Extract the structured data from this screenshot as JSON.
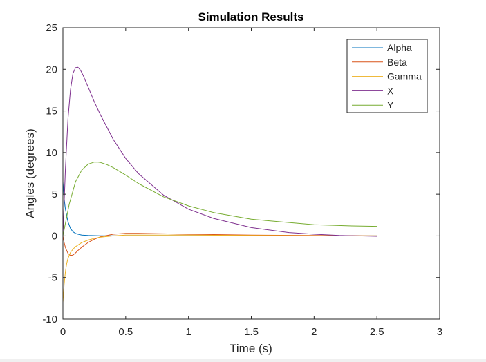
{
  "chart_data": {
    "type": "line",
    "title": "Simulation Results",
    "xlabel": "Time (s)",
    "ylabel": "Angles (degrees)",
    "xlim": [
      0,
      3
    ],
    "ylim": [
      -10,
      25
    ],
    "xticks": [
      0,
      0.5,
      1,
      1.5,
      2,
      2.5,
      3
    ],
    "xtick_labels": [
      "0",
      "0.5",
      "1",
      "1.5",
      "2",
      "2.5",
      "3"
    ],
    "yticks": [
      -10,
      -5,
      0,
      5,
      10,
      15,
      20,
      25
    ],
    "ytick_labels": [
      "-10",
      "-5",
      "0",
      "5",
      "10",
      "15",
      "20",
      "25"
    ],
    "grid": false,
    "legend_position": "top-right",
    "series": [
      {
        "name": "Alpha",
        "color": "#0072BD",
        "x": [
          0,
          0.01,
          0.02,
          0.04,
          0.06,
          0.08,
          0.1,
          0.12,
          0.15,
          0.2,
          0.3,
          0.5,
          1.0,
          1.5,
          2.0,
          2.5
        ],
        "y": [
          6.5,
          4.5,
          3.2,
          1.7,
          0.9,
          0.5,
          0.3,
          0.2,
          0.1,
          0.05,
          0.02,
          0.0,
          0.0,
          0.0,
          0.0,
          0.0
        ]
      },
      {
        "name": "Beta",
        "color": "#D95319",
        "x": [
          0,
          0.01,
          0.02,
          0.04,
          0.06,
          0.08,
          0.1,
          0.12,
          0.15,
          0.2,
          0.25,
          0.3,
          0.4,
          0.5,
          0.6,
          0.8,
          1.0,
          1.5,
          2.0,
          2.5
        ],
        "y": [
          0,
          -0.8,
          -1.4,
          -2.1,
          -2.35,
          -2.3,
          -2.05,
          -1.75,
          -1.35,
          -0.8,
          -0.4,
          -0.1,
          0.2,
          0.3,
          0.3,
          0.25,
          0.2,
          0.1,
          0.05,
          0.0
        ]
      },
      {
        "name": "Gamma",
        "color": "#EDB120",
        "x": [
          0,
          0.01,
          0.02,
          0.03,
          0.04,
          0.06,
          0.08,
          0.1,
          0.12,
          0.15,
          0.2,
          0.25,
          0.3,
          0.4,
          0.5,
          1.0,
          1.5,
          2.0,
          2.5
        ],
        "y": [
          -8,
          -5.8,
          -4.3,
          -3.3,
          -2.7,
          -2.0,
          -1.6,
          -1.3,
          -1.1,
          -0.8,
          -0.5,
          -0.3,
          -0.15,
          0.0,
          0.1,
          0.1,
          0.05,
          0.02,
          0.0
        ]
      },
      {
        "name": "X",
        "color": "#7E2F8E",
        "x": [
          0,
          0.01,
          0.02,
          0.04,
          0.06,
          0.08,
          0.1,
          0.12,
          0.14,
          0.16,
          0.2,
          0.25,
          0.3,
          0.4,
          0.5,
          0.6,
          0.8,
          1.0,
          1.2,
          1.5,
          1.8,
          2.0,
          2.2,
          2.5
        ],
        "y": [
          0,
          4.0,
          8.0,
          14.0,
          17.5,
          19.5,
          20.2,
          20.25,
          19.9,
          19.3,
          17.9,
          16.1,
          14.5,
          11.6,
          9.3,
          7.5,
          4.9,
          3.2,
          2.1,
          1.0,
          0.4,
          0.2,
          0.05,
          -0.05
        ]
      },
      {
        "name": "Y",
        "color": "#77AC30",
        "x": [
          0,
          0.02,
          0.05,
          0.1,
          0.15,
          0.2,
          0.25,
          0.28,
          0.3,
          0.35,
          0.4,
          0.5,
          0.6,
          0.8,
          1.0,
          1.2,
          1.5,
          1.8,
          2.0,
          2.3,
          2.5
        ],
        "y": [
          0,
          1.5,
          3.8,
          6.5,
          7.9,
          8.6,
          8.85,
          8.85,
          8.8,
          8.55,
          8.2,
          7.3,
          6.3,
          4.7,
          3.6,
          2.8,
          2.0,
          1.6,
          1.35,
          1.2,
          1.15
        ]
      }
    ]
  }
}
